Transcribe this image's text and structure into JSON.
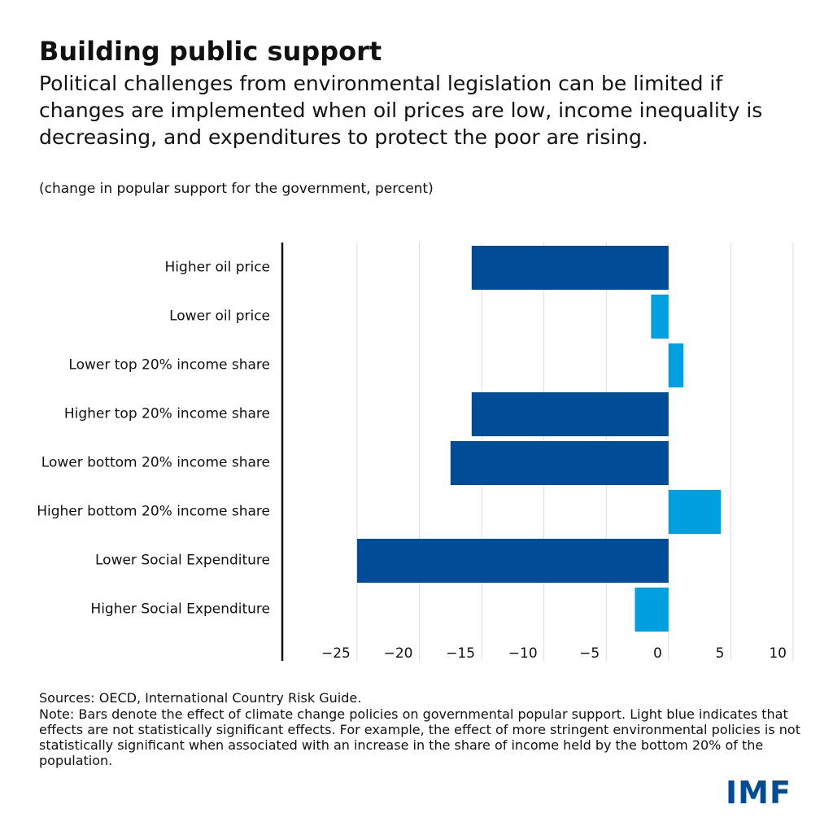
{
  "chart_data": {
    "type": "hbar",
    "title": "Building public support",
    "subtitle": "Political challenges from environmental legislation can be limited if changes are implemented when oil prices are low, income inequality is decreasing, and expenditures to protect the poor are rising.",
    "unit_note": "(change in popular support for the government, percent)",
    "categories": [
      "Higher oil price",
      "Lower oil price",
      "Lower top 20% income share",
      "Higher top 20% income share",
      "Lower bottom 20% income share",
      "Higher bottom 20% income share",
      "Lower Social Expenditure",
      "Higher Social Expenditure"
    ],
    "values": [
      -15.8,
      -1.4,
      1.2,
      -15.8,
      -17.5,
      4.2,
      -25.0,
      -2.7
    ],
    "colors": [
      "#004c97",
      "#009fdf",
      "#009fdf",
      "#004c97",
      "#004c97",
      "#009fdf",
      "#004c97",
      "#009fdf"
    ],
    "xlim": [
      -31,
      10
    ],
    "xticks": [
      {
        "value": -25,
        "label": "−25"
      },
      {
        "value": -20,
        "label": "−20"
      },
      {
        "value": -15,
        "label": "−15"
      },
      {
        "value": -10,
        "label": "−10"
      },
      {
        "value": -5,
        "label": "−5"
      },
      0,
      5,
      10
    ],
    "grid": true
  },
  "footer": {
    "sources": "Sources: OECD, International Country Risk Guide.",
    "note": "Note: Bars denote the effect of climate change policies on governmental popular support. Light blue indicates that effects are not statistically significant effects. For example, the effect of more stringent environmental policies is not statistically significant when associated with an increase in the share of income held by the bottom 20% of the population.",
    "logo": "IMF"
  }
}
